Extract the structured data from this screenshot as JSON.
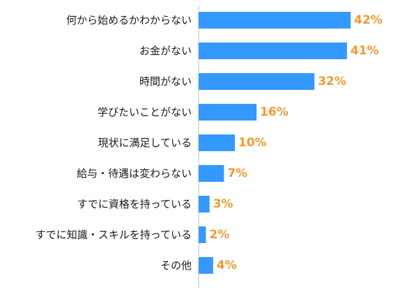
{
  "chart_data": {
    "type": "bar",
    "orientation": "horizontal",
    "categories": [
      "何から始めるかわからない",
      "お金がない",
      "時間がない",
      "学びたいことがない",
      "現状に満足している",
      "給与・待遇は変わらない",
      "すでに資格を持っている",
      "すでに知識・スキルを持っている",
      "その他"
    ],
    "values": [
      42,
      41,
      32,
      16,
      10,
      7,
      3,
      2,
      4
    ],
    "value_labels": [
      "42%",
      "41%",
      "32%",
      "16%",
      "10%",
      "7%",
      "3%",
      "2%",
      "4%"
    ],
    "xlim": [
      0,
      50
    ],
    "title": "",
    "xlabel": "",
    "ylabel": "",
    "grid": false,
    "bar_color": "#3399ff",
    "label_color": "#f29a2e",
    "axis_color": "#bfbfbf"
  }
}
